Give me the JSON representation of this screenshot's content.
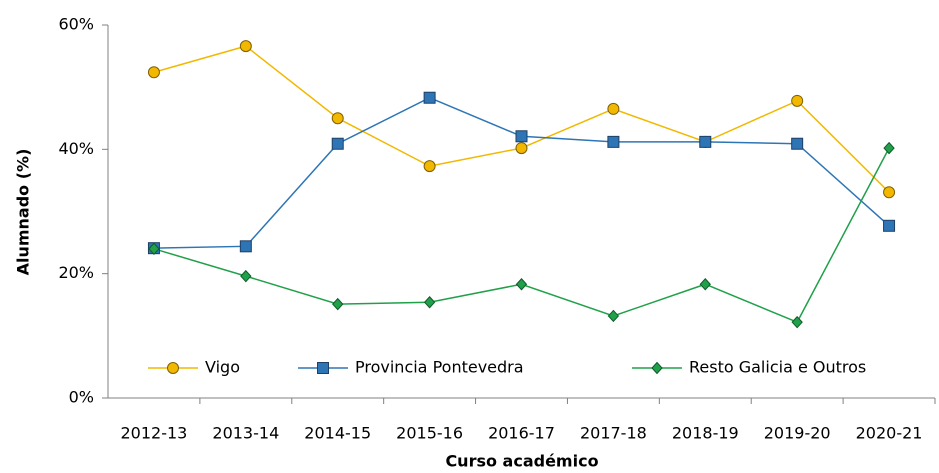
{
  "chart_data": {
    "type": "line",
    "x_label": "Curso académico",
    "y_label": "Alumnado (%)",
    "categories": [
      "2012-13",
      "2013-14",
      "2014-15",
      "2015-16",
      "2016-17",
      "2017-18",
      "2018-19",
      "2019-20",
      "2020-21"
    ],
    "series": [
      {
        "name": "Vigo",
        "color": "#F2B800",
        "marker": "circle",
        "values": [
          52.4,
          56.6,
          45.0,
          37.3,
          40.2,
          46.5,
          41.2,
          47.8,
          33.1
        ]
      },
      {
        "name": "Provincia Pontevedra",
        "color": "#2E75B6",
        "marker": "square",
        "values": [
          24.1,
          24.4,
          40.9,
          48.3,
          42.1,
          41.2,
          41.2,
          40.9,
          27.7
        ]
      },
      {
        "name": "Resto Galicia e Outros",
        "color": "#21A04A",
        "marker": "diamond",
        "values": [
          24.0,
          19.6,
          15.1,
          15.4,
          18.3,
          13.2,
          18.3,
          12.2,
          40.2
        ]
      }
    ],
    "ylim": [
      0,
      60
    ],
    "yticks": [
      {
        "value": 0,
        "label": "0%"
      },
      {
        "value": 20,
        "label": "20%"
      },
      {
        "value": 40,
        "label": "40%"
      },
      {
        "value": 60,
        "label": "60%"
      }
    ],
    "grid": false,
    "legend": "bottom"
  }
}
